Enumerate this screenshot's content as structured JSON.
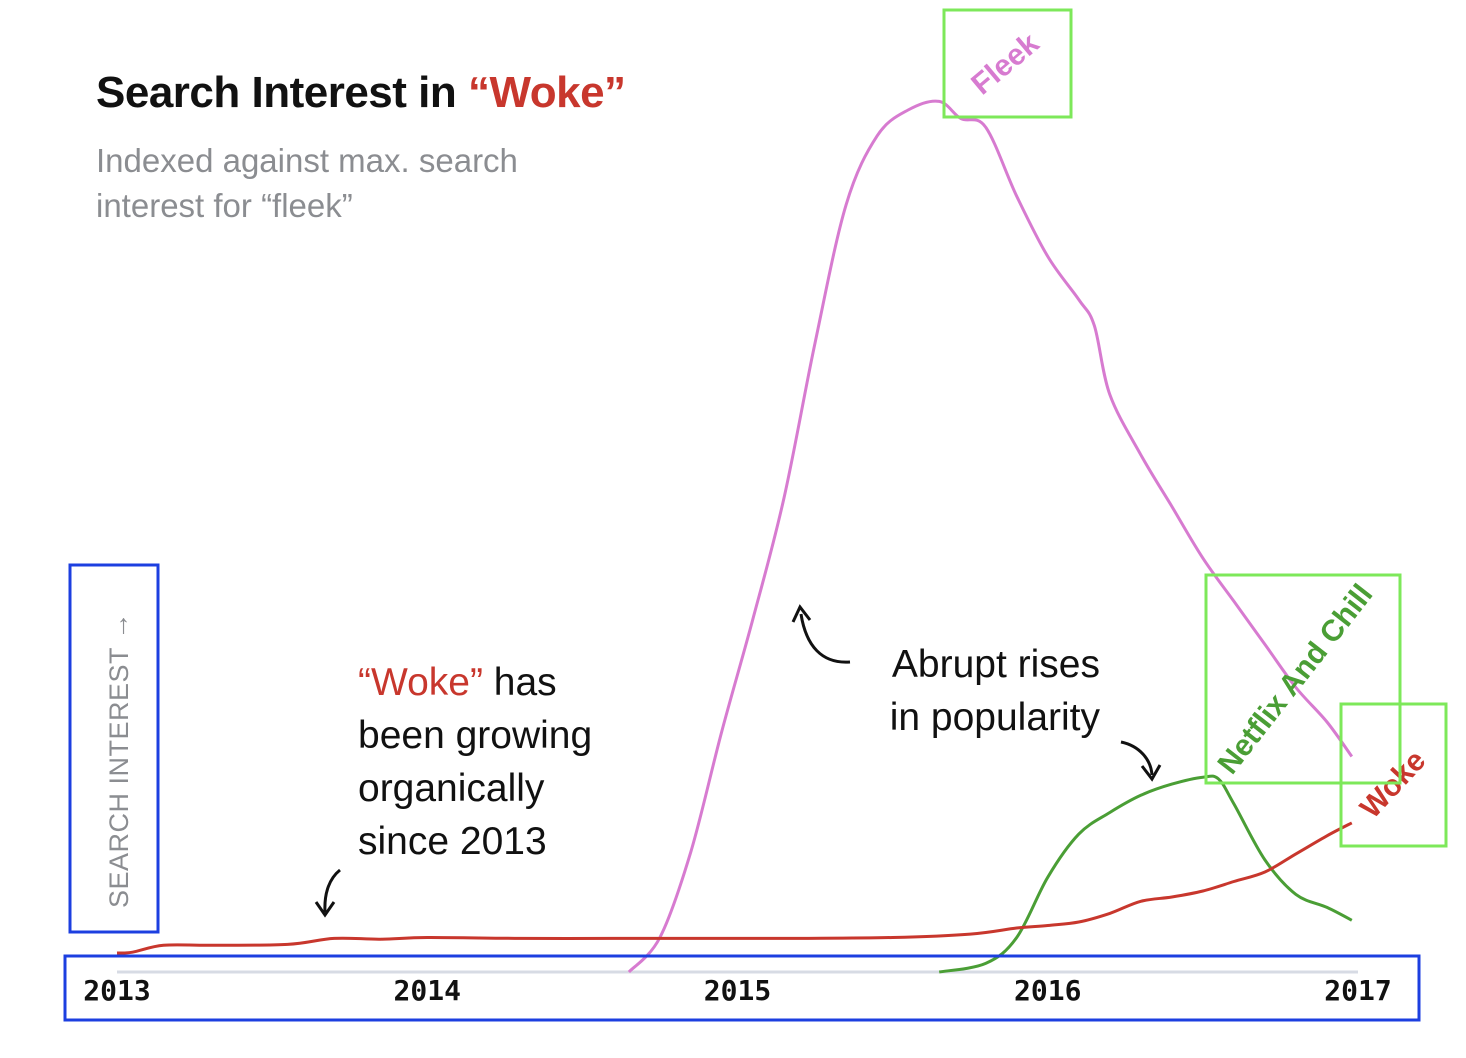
{
  "title": {
    "prefix": "Search Interest in ",
    "highlight": "“Woke”"
  },
  "subtitle": {
    "line1": "Indexed against max. search",
    "line2": "interest for “fleek”"
  },
  "annotations": {
    "woke": {
      "highlight": "“Woke”",
      "line1_rest": " has",
      "line2": "been growing",
      "line3": "organically",
      "line4": "since 2013"
    },
    "abrupt": {
      "line1": "Abrupt rises",
      "line2": "in popularity"
    }
  },
  "colors": {
    "fleek": "#d77bd0",
    "netflix": "#4a9e35",
    "woke": "#c8372d",
    "axis": "#d7dbe4",
    "highlight_box": "#7de85a",
    "axis_box": "#1c3fe0"
  },
  "chart_data": {
    "type": "line",
    "title": "Search Interest in “Woke”",
    "subtitle": "Indexed against max. search interest for “fleek”",
    "ylabel": "SEARCH INTEREST →",
    "xlabel": "",
    "x_ticks": [
      "2013",
      "2014",
      "2015",
      "2016",
      "2017"
    ],
    "xlim": [
      2013,
      2017
    ],
    "ylim": [
      0,
      100
    ],
    "grid": false,
    "series": [
      {
        "name": "Fleek",
        "color": "#d77bd0",
        "x": [
          2014.65,
          2014.75,
          2014.85,
          2014.95,
          2015.05,
          2015.15,
          2015.25,
          2015.35,
          2015.45,
          2015.55,
          2015.65,
          2015.72,
          2015.8,
          2015.9,
          2016.0,
          2016.1,
          2016.15,
          2016.2,
          2016.3,
          2016.4,
          2016.5,
          2016.6,
          2016.7,
          2016.8,
          2016.9,
          2016.98
        ],
        "y": [
          0,
          4,
          14,
          28,
          41,
          55,
          73,
          89,
          97,
          100,
          101,
          99,
          98,
          90,
          83,
          78,
          75,
          67,
          60,
          54,
          48,
          43,
          38,
          33,
          29,
          25
        ]
      },
      {
        "name": "Netflix And Chill",
        "color": "#4a9e35",
        "x": [
          2015.65,
          2015.8,
          2015.9,
          2016.0,
          2016.1,
          2016.2,
          2016.3,
          2016.4,
          2016.5,
          2016.55,
          2016.6,
          2016.7,
          2016.8,
          2016.9,
          2016.98
        ],
        "y": [
          0,
          1,
          4,
          11,
          16,
          18.5,
          20.5,
          21.8,
          22.6,
          22.4,
          19.5,
          13,
          9,
          7.5,
          6
        ]
      },
      {
        "name": "Woke",
        "color": "#c8372d",
        "x": [
          2013.0,
          2013.05,
          2013.15,
          2013.3,
          2013.55,
          2013.7,
          2013.85,
          2014.0,
          2014.3,
          2014.6,
          2014.9,
          2015.2,
          2015.5,
          2015.75,
          2015.9,
          2016.0,
          2016.1,
          2016.2,
          2016.3,
          2016.4,
          2016.5,
          2016.6,
          2016.7,
          2016.8,
          2016.9,
          2016.98
        ],
        "y": [
          2.2,
          2.3,
          3.1,
          3.1,
          3.2,
          3.9,
          3.8,
          4.0,
          3.9,
          3.9,
          3.9,
          3.9,
          4.0,
          4.4,
          5.1,
          5.4,
          5.8,
          6.8,
          8.2,
          8.7,
          9.4,
          10.5,
          11.6,
          13.7,
          15.8,
          17.3
        ]
      }
    ],
    "series_labels": [
      "Fleek",
      "Netflix And Chill",
      "Woke"
    ]
  }
}
